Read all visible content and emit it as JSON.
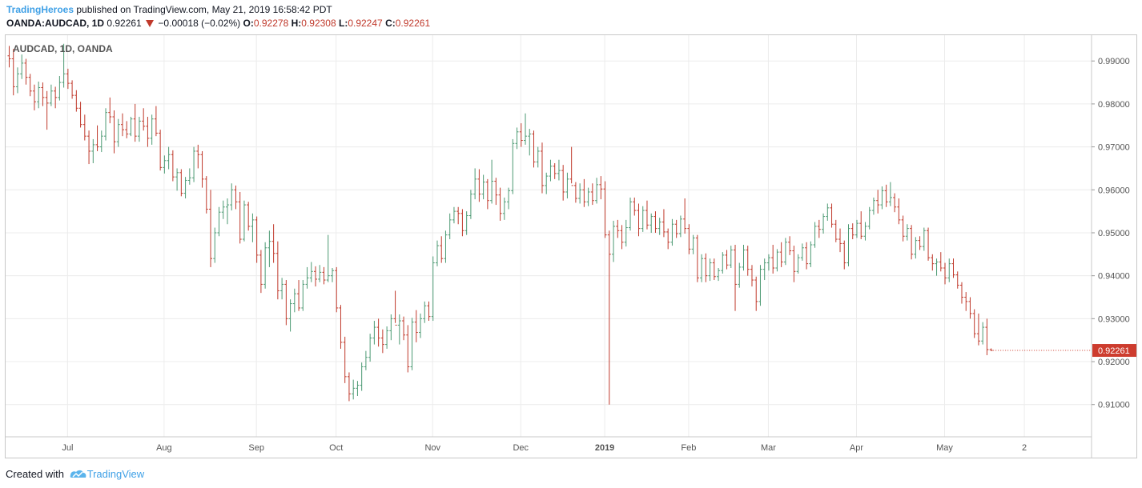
{
  "header": {
    "author": "TradingHeroes",
    "published_text": "published on TradingView.com, May 21, 2019 16:58:42 PDT",
    "symbol": "OANDA:AUDCAD, 1D",
    "last": "0.92261",
    "change": "−0.00018 (−0.02%)",
    "o_label": "O:",
    "o_value": "0.92278",
    "h_label": "H:",
    "h_value": "0.92308",
    "l_label": "L:",
    "l_value": "0.92247",
    "c_label": "C:",
    "c_value": "0.92261"
  },
  "footer": {
    "created_with": "Created with",
    "brand": "TradingView"
  },
  "colors": {
    "up": "#4c9a73",
    "down": "#c0392b",
    "grid": "#ececec",
    "axis_text": "#555555",
    "price_tag": "#cd3c2e"
  },
  "chart_data": {
    "type": "ohlc-bar",
    "title": "AUDCAD, 1D, OANDA",
    "interval": "1D",
    "ylim": [
      0.9025,
      0.996
    ],
    "y_ticks": [
      "0.91000",
      "0.92000",
      "0.93000",
      "0.94000",
      "0.95000",
      "0.96000",
      "0.97000",
      "0.98000",
      "0.99000"
    ],
    "x_ticks": [
      "Jul",
      "Aug",
      "Sep",
      "Oct",
      "Nov",
      "Dec",
      "2019",
      "Feb",
      "Mar",
      "Apr",
      "May",
      "2"
    ],
    "x_tick_index": [
      14,
      37,
      59,
      78,
      101,
      122,
      142,
      162,
      181,
      202,
      223,
      242
    ],
    "last_price": "0.92261",
    "grid": true,
    "bars": [
      [
        0.9912,
        0.9935,
        0.9885,
        0.9905
      ],
      [
        0.9905,
        0.9928,
        0.982,
        0.984
      ],
      [
        0.984,
        0.9885,
        0.9825,
        0.987
      ],
      [
        0.987,
        0.9915,
        0.9858,
        0.9895
      ],
      [
        0.9895,
        0.9905,
        0.9845,
        0.9862
      ],
      [
        0.9862,
        0.987,
        0.9818,
        0.983
      ],
      [
        0.983,
        0.9845,
        0.9785,
        0.9805
      ],
      [
        0.9805,
        0.9852,
        0.979,
        0.9838
      ],
      [
        0.9838,
        0.985,
        0.9795,
        0.9815
      ],
      [
        0.9815,
        0.983,
        0.974,
        0.9802
      ],
      [
        0.9802,
        0.9845,
        0.9795,
        0.983
      ],
      [
        0.983,
        0.984,
        0.979,
        0.9815
      ],
      [
        0.9815,
        0.9865,
        0.9808,
        0.985
      ],
      [
        0.985,
        0.994,
        0.9838,
        0.987
      ],
      [
        0.987,
        0.9882,
        0.9835,
        0.9848
      ],
      [
        0.9848,
        0.9855,
        0.9812,
        0.982
      ],
      [
        0.982,
        0.9832,
        0.9782,
        0.979
      ],
      [
        0.979,
        0.9805,
        0.9745,
        0.9752
      ],
      [
        0.9752,
        0.9775,
        0.9715,
        0.9725
      ],
      [
        0.9725,
        0.9738,
        0.966,
        0.969
      ],
      [
        0.969,
        0.9718,
        0.9662,
        0.9705
      ],
      [
        0.9705,
        0.975,
        0.969,
        0.97
      ],
      [
        0.97,
        0.9738,
        0.9688,
        0.9725
      ],
      [
        0.9725,
        0.979,
        0.9715,
        0.978
      ],
      [
        0.978,
        0.9815,
        0.9755,
        0.977
      ],
      [
        0.977,
        0.9785,
        0.9685,
        0.9712
      ],
      [
        0.9712,
        0.9765,
        0.97,
        0.9752
      ],
      [
        0.9752,
        0.9778,
        0.9725,
        0.974
      ],
      [
        0.974,
        0.976,
        0.972,
        0.973
      ],
      [
        0.973,
        0.977,
        0.9725,
        0.9765
      ],
      [
        0.9765,
        0.98,
        0.9712,
        0.9725
      ],
      [
        0.9725,
        0.977,
        0.9712,
        0.976
      ],
      [
        0.976,
        0.979,
        0.9738,
        0.9748
      ],
      [
        0.9748,
        0.977,
        0.97,
        0.972
      ],
      [
        0.972,
        0.9775,
        0.9705,
        0.9765
      ],
      [
        0.9765,
        0.9795,
        0.9725,
        0.9732
      ],
      [
        0.9732,
        0.974,
        0.9645,
        0.9652
      ],
      [
        0.9652,
        0.968,
        0.9638,
        0.9668
      ],
      [
        0.9668,
        0.97,
        0.9648,
        0.9682
      ],
      [
        0.9682,
        0.9692,
        0.962,
        0.963
      ],
      [
        0.963,
        0.965,
        0.9598,
        0.964
      ],
      [
        0.964,
        0.9648,
        0.9585,
        0.9592
      ],
      [
        0.9592,
        0.963,
        0.958,
        0.9622
      ],
      [
        0.9622,
        0.965,
        0.9612,
        0.9628
      ],
      [
        0.9628,
        0.97,
        0.9618,
        0.969
      ],
      [
        0.969,
        0.9705,
        0.965,
        0.9682
      ],
      [
        0.9682,
        0.969,
        0.9605,
        0.9625
      ],
      [
        0.9625,
        0.9632,
        0.9545,
        0.9555
      ],
      [
        0.9555,
        0.96,
        0.942,
        0.944
      ],
      [
        0.944,
        0.9512,
        0.943,
        0.95
      ],
      [
        0.95,
        0.956,
        0.9492,
        0.9548
      ],
      [
        0.9548,
        0.9575,
        0.9532,
        0.956
      ],
      [
        0.956,
        0.958,
        0.952,
        0.9565
      ],
      [
        0.9565,
        0.9615,
        0.9552,
        0.96
      ],
      [
        0.96,
        0.961,
        0.9555,
        0.9572
      ],
      [
        0.9572,
        0.9595,
        0.9475,
        0.9485
      ],
      [
        0.9485,
        0.9575,
        0.948,
        0.9565
      ],
      [
        0.9565,
        0.9572,
        0.9505,
        0.9515
      ],
      [
        0.9515,
        0.9545,
        0.9478,
        0.953
      ],
      [
        0.953,
        0.9538,
        0.943,
        0.9448
      ],
      [
        0.9448,
        0.946,
        0.936,
        0.938
      ],
      [
        0.938,
        0.9478,
        0.937,
        0.9465
      ],
      [
        0.9465,
        0.9505,
        0.942,
        0.948
      ],
      [
        0.948,
        0.952,
        0.943,
        0.9452
      ],
      [
        0.9452,
        0.948,
        0.9345,
        0.9365
      ],
      [
        0.9365,
        0.9395,
        0.9345,
        0.938
      ],
      [
        0.938,
        0.939,
        0.9285,
        0.93
      ],
      [
        0.93,
        0.9345,
        0.927,
        0.9335
      ],
      [
        0.9335,
        0.937,
        0.9315,
        0.9358
      ],
      [
        0.9358,
        0.939,
        0.9318,
        0.9325
      ],
      [
        0.9325,
        0.939,
        0.9318,
        0.938
      ],
      [
        0.938,
        0.942,
        0.937,
        0.9395
      ],
      [
        0.9395,
        0.9432,
        0.9385,
        0.941
      ],
      [
        0.941,
        0.9422,
        0.9375,
        0.9392
      ],
      [
        0.9392,
        0.9425,
        0.9385,
        0.9408
      ],
      [
        0.9408,
        0.942,
        0.938,
        0.939
      ],
      [
        0.939,
        0.9495,
        0.9385,
        0.94
      ],
      [
        0.94,
        0.9418,
        0.9385,
        0.9412
      ],
      [
        0.9412,
        0.942,
        0.9315,
        0.9325
      ],
      [
        0.9325,
        0.9332,
        0.923,
        0.9245
      ],
      [
        0.9245,
        0.9258,
        0.915,
        0.9165
      ],
      [
        0.9165,
        0.9175,
        0.9108,
        0.9125
      ],
      [
        0.9125,
        0.9158,
        0.9112,
        0.9138
      ],
      [
        0.9138,
        0.9155,
        0.912,
        0.9145
      ],
      [
        0.9145,
        0.9198,
        0.9132,
        0.9188
      ],
      [
        0.9188,
        0.9225,
        0.918,
        0.921
      ],
      [
        0.921,
        0.9265,
        0.92,
        0.9255
      ],
      [
        0.9255,
        0.9295,
        0.924,
        0.928
      ],
      [
        0.928,
        0.93,
        0.9235,
        0.9255
      ],
      [
        0.9255,
        0.9275,
        0.922,
        0.924
      ],
      [
        0.924,
        0.9282,
        0.923,
        0.9272
      ],
      [
        0.9272,
        0.931,
        0.925,
        0.93
      ],
      [
        0.93,
        0.9365,
        0.929,
        0.9285
      ],
      [
        0.9285,
        0.931,
        0.924,
        0.9295
      ],
      [
        0.9295,
        0.9305,
        0.925,
        0.9262
      ],
      [
        0.9262,
        0.9285,
        0.9175,
        0.9188
      ],
      [
        0.9188,
        0.9302,
        0.918,
        0.9292
      ],
      [
        0.9292,
        0.932,
        0.9245,
        0.9268
      ],
      [
        0.9268,
        0.9312,
        0.9255,
        0.93
      ],
      [
        0.93,
        0.934,
        0.929,
        0.933
      ],
      [
        0.933,
        0.934,
        0.9295,
        0.9305
      ],
      [
        0.9305,
        0.9445,
        0.9295,
        0.943
      ],
      [
        0.943,
        0.9482,
        0.9422,
        0.947
      ],
      [
        0.947,
        0.9492,
        0.943,
        0.944
      ],
      [
        0.944,
        0.9505,
        0.943,
        0.9495
      ],
      [
        0.9495,
        0.9545,
        0.9485,
        0.953
      ],
      [
        0.953,
        0.956,
        0.9522,
        0.955
      ],
      [
        0.955,
        0.956,
        0.952,
        0.9545
      ],
      [
        0.9545,
        0.9555,
        0.9492,
        0.9505
      ],
      [
        0.9505,
        0.955,
        0.9495,
        0.954
      ],
      [
        0.954,
        0.96,
        0.9532,
        0.959
      ],
      [
        0.959,
        0.965,
        0.9578,
        0.9625
      ],
      [
        0.9625,
        0.9648,
        0.9572,
        0.959
      ],
      [
        0.959,
        0.9635,
        0.9578,
        0.9618
      ],
      [
        0.9618,
        0.9625,
        0.9555,
        0.9575
      ],
      [
        0.9575,
        0.967,
        0.9568,
        0.962
      ],
      [
        0.962,
        0.9628,
        0.9565,
        0.9588
      ],
      [
        0.9588,
        0.9605,
        0.9528,
        0.9545
      ],
      [
        0.9545,
        0.9582,
        0.953,
        0.9572
      ],
      [
        0.9572,
        0.9605,
        0.9555,
        0.9598
      ],
      [
        0.9598,
        0.9718,
        0.959,
        0.9708
      ],
      [
        0.9708,
        0.9745,
        0.9695,
        0.9735
      ],
      [
        0.9735,
        0.9755,
        0.97,
        0.9715
      ],
      [
        0.9715,
        0.9778,
        0.9705,
        0.9725
      ],
      [
        0.9725,
        0.9742,
        0.968,
        0.973
      ],
      [
        0.973,
        0.9738,
        0.9652,
        0.9665
      ],
      [
        0.9665,
        0.97,
        0.9652,
        0.969
      ],
      [
        0.969,
        0.971,
        0.9592,
        0.961
      ],
      [
        0.961,
        0.964,
        0.959,
        0.9632
      ],
      [
        0.9632,
        0.967,
        0.962,
        0.9655
      ],
      [
        0.9655,
        0.9662,
        0.9625,
        0.9638
      ],
      [
        0.9638,
        0.967,
        0.9622,
        0.9645
      ],
      [
        0.9645,
        0.9658,
        0.9575,
        0.9595
      ],
      [
        0.9595,
        0.964,
        0.958,
        0.9625
      ],
      [
        0.9625,
        0.97,
        0.9615,
        0.961
      ],
      [
        0.961,
        0.9618,
        0.957,
        0.958
      ],
      [
        0.958,
        0.9615,
        0.9568,
        0.96
      ],
      [
        0.96,
        0.9625,
        0.956,
        0.9572
      ],
      [
        0.9572,
        0.9605,
        0.9562,
        0.9595
      ],
      [
        0.9595,
        0.9615,
        0.9565,
        0.9575
      ],
      [
        0.9575,
        0.9628,
        0.9568,
        0.9612
      ],
      [
        0.9612,
        0.9632,
        0.9578,
        0.9602
      ],
      [
        0.9602,
        0.962,
        0.9488,
        0.9495
      ],
      [
        0.9495,
        0.9505,
        0.91,
        0.945
      ],
      [
        0.945,
        0.9528,
        0.9432,
        0.9515
      ],
      [
        0.9515,
        0.953,
        0.9488,
        0.9505
      ],
      [
        0.9505,
        0.9518,
        0.9462,
        0.9478
      ],
      [
        0.9478,
        0.953,
        0.9468,
        0.9512
      ],
      [
        0.9512,
        0.9582,
        0.9505,
        0.9572
      ],
      [
        0.9572,
        0.9582,
        0.954,
        0.9552
      ],
      [
        0.9552,
        0.9568,
        0.9492,
        0.951
      ],
      [
        0.951,
        0.9562,
        0.9502,
        0.9552
      ],
      [
        0.9552,
        0.9575,
        0.9508,
        0.9518
      ],
      [
        0.9518,
        0.9545,
        0.95,
        0.9538
      ],
      [
        0.9538,
        0.955,
        0.95,
        0.951
      ],
      [
        0.951,
        0.9535,
        0.9495,
        0.9525
      ],
      [
        0.9525,
        0.9555,
        0.949,
        0.9502
      ],
      [
        0.9502,
        0.951,
        0.9462,
        0.9478
      ],
      [
        0.9478,
        0.9532,
        0.947,
        0.952
      ],
      [
        0.952,
        0.953,
        0.9488,
        0.9498
      ],
      [
        0.9498,
        0.954,
        0.949,
        0.9532
      ],
      [
        0.9532,
        0.958,
        0.9498,
        0.951
      ],
      [
        0.951,
        0.952,
        0.945,
        0.9462
      ],
      [
        0.9462,
        0.9495,
        0.945,
        0.9488
      ],
      [
        0.9488,
        0.9495,
        0.9385,
        0.9395
      ],
      [
        0.9395,
        0.945,
        0.9385,
        0.944
      ],
      [
        0.944,
        0.9452,
        0.9385,
        0.94
      ],
      [
        0.94,
        0.944,
        0.9388,
        0.943
      ],
      [
        0.943,
        0.944,
        0.939,
        0.9398
      ],
      [
        0.9398,
        0.9418,
        0.9388,
        0.9412
      ],
      [
        0.9412,
        0.9455,
        0.9405,
        0.9448
      ],
      [
        0.9448,
        0.946,
        0.9415,
        0.9425
      ],
      [
        0.9425,
        0.947,
        0.9418,
        0.946
      ],
      [
        0.946,
        0.9472,
        0.9318,
        0.938
      ],
      [
        0.938,
        0.943,
        0.9372,
        0.942
      ],
      [
        0.942,
        0.9472,
        0.9412,
        0.946
      ],
      [
        0.946,
        0.947,
        0.94,
        0.9415
      ],
      [
        0.9415,
        0.9425,
        0.9375,
        0.939
      ],
      [
        0.939,
        0.9398,
        0.9318,
        0.934
      ],
      [
        0.934,
        0.9425,
        0.933,
        0.9415
      ],
      [
        0.9415,
        0.944,
        0.939,
        0.943
      ],
      [
        0.943,
        0.945,
        0.9412,
        0.9442
      ],
      [
        0.9442,
        0.9472,
        0.9405,
        0.9418
      ],
      [
        0.9418,
        0.9462,
        0.941,
        0.9455
      ],
      [
        0.9455,
        0.9478,
        0.942,
        0.9432
      ],
      [
        0.9432,
        0.9488,
        0.9425,
        0.9478
      ],
      [
        0.9478,
        0.9492,
        0.9448,
        0.9458
      ],
      [
        0.9458,
        0.947,
        0.9385,
        0.941
      ],
      [
        0.941,
        0.945,
        0.9405,
        0.9442
      ],
      [
        0.9442,
        0.9475,
        0.9435,
        0.9465
      ],
      [
        0.9465,
        0.9478,
        0.9415,
        0.9428
      ],
      [
        0.9428,
        0.948,
        0.942,
        0.9472
      ],
      [
        0.9472,
        0.9525,
        0.9465,
        0.9515
      ],
      [
        0.9515,
        0.953,
        0.9488,
        0.9508
      ],
      [
        0.9508,
        0.9545,
        0.9498,
        0.9538
      ],
      [
        0.9538,
        0.9568,
        0.9528,
        0.9558
      ],
      [
        0.9558,
        0.9568,
        0.9512,
        0.952
      ],
      [
        0.952,
        0.953,
        0.9478,
        0.9485
      ],
      [
        0.9485,
        0.951,
        0.9455,
        0.9475
      ],
      [
        0.9475,
        0.9482,
        0.9415,
        0.943
      ],
      [
        0.943,
        0.952,
        0.9422,
        0.951
      ],
      [
        0.951,
        0.9522,
        0.9485,
        0.9495
      ],
      [
        0.9495,
        0.953,
        0.9488,
        0.9522
      ],
      [
        0.9522,
        0.955,
        0.9485,
        0.9492
      ],
      [
        0.9492,
        0.9525,
        0.9482,
        0.9515
      ],
      [
        0.9515,
        0.956,
        0.9508,
        0.9552
      ],
      [
        0.9552,
        0.9582,
        0.9542,
        0.9575
      ],
      [
        0.9575,
        0.96,
        0.9545,
        0.9565
      ],
      [
        0.9565,
        0.9608,
        0.9555,
        0.9598
      ],
      [
        0.9598,
        0.9612,
        0.956,
        0.9572
      ],
      [
        0.9572,
        0.9618,
        0.9562,
        0.9582
      ],
      [
        0.9582,
        0.9592,
        0.9548,
        0.956
      ],
      [
        0.956,
        0.958,
        0.952,
        0.953
      ],
      [
        0.953,
        0.954,
        0.948,
        0.9492
      ],
      [
        0.9492,
        0.952,
        0.9482,
        0.951
      ],
      [
        0.951,
        0.9518,
        0.9438,
        0.945
      ],
      [
        0.945,
        0.949,
        0.944,
        0.9482
      ],
      [
        0.9482,
        0.9492,
        0.946,
        0.9468
      ],
      [
        0.9468,
        0.9512,
        0.9458,
        0.9505
      ],
      [
        0.9505,
        0.9512,
        0.9435,
        0.9442
      ],
      [
        0.9442,
        0.945,
        0.9412,
        0.9428
      ],
      [
        0.9428,
        0.944,
        0.94,
        0.9432
      ],
      [
        0.9432,
        0.9455,
        0.941,
        0.9418
      ],
      [
        0.9418,
        0.943,
        0.938,
        0.9395
      ],
      [
        0.9395,
        0.944,
        0.9385,
        0.9428
      ],
      [
        0.9428,
        0.944,
        0.9395,
        0.9402
      ],
      [
        0.9402,
        0.941,
        0.937,
        0.9378
      ],
      [
        0.9378,
        0.9385,
        0.9335,
        0.935
      ],
      [
        0.935,
        0.9362,
        0.9318,
        0.934
      ],
      [
        0.934,
        0.935,
        0.93,
        0.9312
      ],
      [
        0.9312,
        0.9322,
        0.9255,
        0.9265
      ],
      [
        0.9265,
        0.9312,
        0.9238,
        0.9248
      ],
      [
        0.9248,
        0.9292,
        0.924,
        0.928
      ],
      [
        0.928,
        0.93,
        0.9215,
        0.9228
      ],
      [
        0.92278,
        0.92308,
        0.92247,
        0.92261
      ]
    ]
  }
}
